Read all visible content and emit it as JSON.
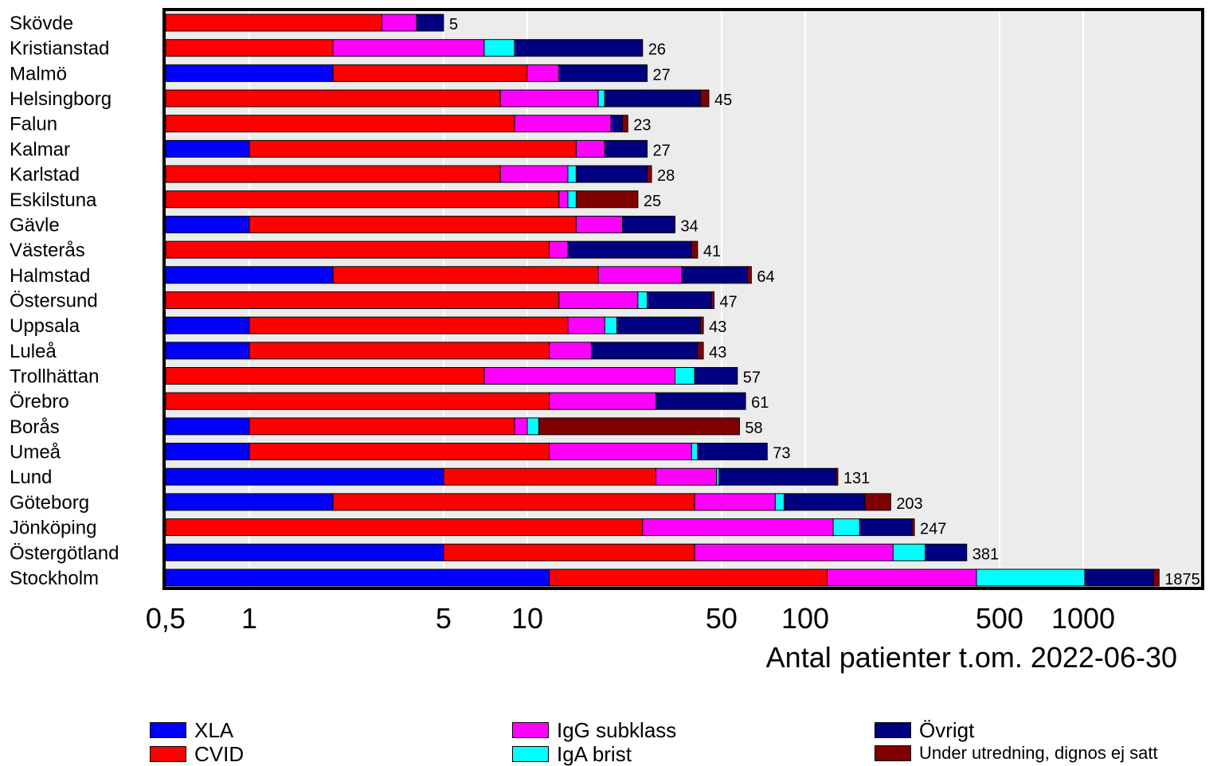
{
  "chart_data": {
    "type": "bar",
    "orientation": "horizontal",
    "stacked": true,
    "scale": "log",
    "xlabel": "Antal patienter t.om. 2022-06-30",
    "xlim": [
      0.5,
      2000
    ],
    "grid": true,
    "legend_position": "bottom",
    "x_ticks": [
      "0,5",
      "1",
      "5",
      "10",
      "50",
      "100",
      "500",
      "1000"
    ],
    "x_tick_values": [
      0.5,
      1,
      5,
      10,
      50,
      100,
      500,
      1000
    ],
    "categories": [
      "Skövde",
      "Kristianstad",
      "Malmö",
      "Helsingborg",
      "Falun",
      "Kalmar",
      "Karlstad",
      "Eskilstuna",
      "Gävle",
      "Västerås",
      "Halmstad",
      "Östersund",
      "Uppsala",
      "Luleå",
      "Trollhättan",
      "Örebro",
      "Borås",
      "Umeå",
      "Lund",
      "Göteborg",
      "Jönköping",
      "Östergötland",
      "Stockholm"
    ],
    "totals": [
      5,
      26,
      27,
      45,
      23,
      27,
      28,
      25,
      34,
      41,
      64,
      47,
      43,
      43,
      57,
      61,
      58,
      73,
      131,
      203,
      247,
      381,
      1875
    ],
    "series": [
      {
        "name": "XLA",
        "color": "#0000ff",
        "values": [
          0,
          0,
          2,
          0,
          0,
          1,
          0,
          0,
          1,
          0,
          2,
          0,
          1,
          1,
          0,
          0,
          1,
          1,
          5,
          2,
          0,
          5,
          12
        ]
      },
      {
        "name": "CVID",
        "color": "#ff0000",
        "values": [
          3,
          2,
          8,
          8,
          9,
          14,
          8,
          13,
          14,
          12,
          16,
          13,
          13,
          11,
          7,
          12,
          8,
          11,
          24,
          38,
          26,
          35,
          108
        ]
      },
      {
        "name": "IgG subklass",
        "color": "#ff00ff",
        "values": [
          1,
          5,
          3,
          10,
          11,
          4,
          6,
          1,
          7,
          2,
          18,
          12,
          5,
          5,
          27,
          17,
          1,
          27,
          19,
          38,
          100,
          167,
          293
        ]
      },
      {
        "name": "IgA brist",
        "color": "#00ffff",
        "values": [
          0,
          2,
          0,
          1,
          0,
          0,
          1,
          1,
          0,
          0,
          0,
          2,
          2,
          0,
          6,
          0,
          1,
          2,
          1,
          6,
          31,
          63,
          600
        ]
      },
      {
        "name": "Övrigt",
        "color": "#000080",
        "values": [
          1,
          17,
          14,
          23,
          2,
          8,
          12,
          0,
          12,
          25,
          26,
          19,
          21,
          24,
          17,
          32,
          0,
          32,
          80,
          80,
          85,
          111,
          778
        ]
      },
      {
        "name": "Under utredning, dignos ej satt",
        "color": "#800000",
        "values": [
          0,
          0,
          0,
          3,
          1,
          0,
          1,
          10,
          0,
          2,
          2,
          1,
          1,
          2,
          0,
          0,
          47,
          0,
          2,
          39,
          5,
          0,
          84
        ]
      }
    ]
  }
}
